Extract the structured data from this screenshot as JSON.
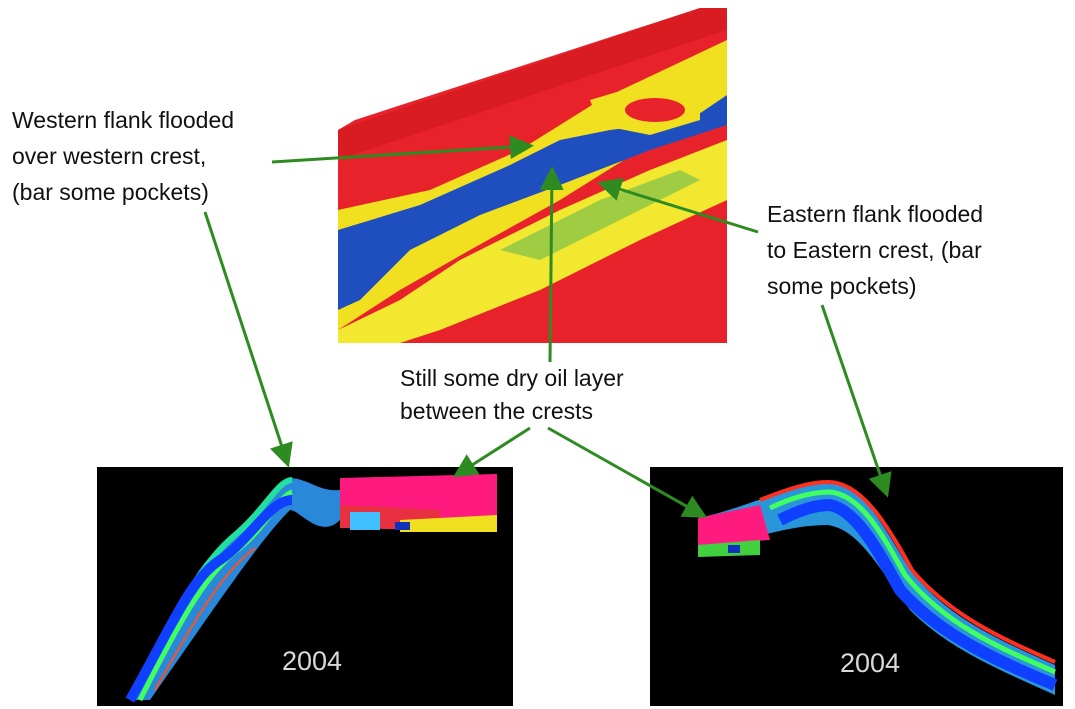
{
  "annotations": [
    {
      "lines": [
        "Western flank flooded",
        "over western crest,",
        "(bar some pockets)"
      ]
    },
    {
      "lines": [
        "Eastern flank flooded",
        "to Eastern crest, (bar",
        "some pockets)"
      ]
    },
    {
      "lines": [
        "Still some dry oil layer",
        "between the crests"
      ]
    }
  ],
  "panels": [
    {
      "label": "2004"
    },
    {
      "label": "2004"
    }
  ]
}
